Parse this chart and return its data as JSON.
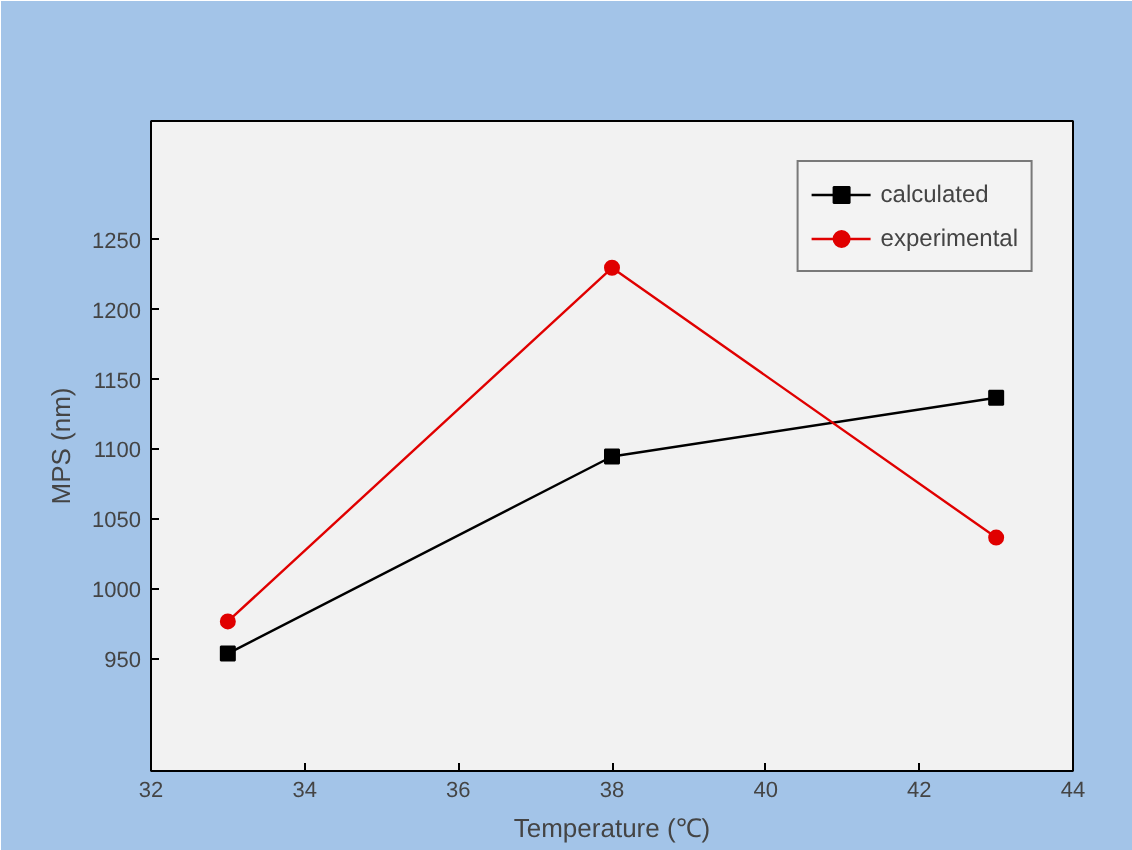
{
  "chart_data": {
    "type": "line",
    "xlabel": "Temperature (℃)",
    "ylabel": "MPS (nm)",
    "x": [
      33,
      38,
      43
    ],
    "series": [
      {
        "name": "calculated",
        "color": "#000000",
        "marker": "square",
        "values": [
          954,
          1095,
          1137
        ]
      },
      {
        "name": "experimental",
        "color": "#e00000",
        "marker": "circle",
        "values": [
          977,
          1230,
          1037
        ]
      }
    ],
    "xlim": [
      32,
      44
    ],
    "xticks": [
      32,
      34,
      36,
      38,
      40,
      42,
      44
    ],
    "ylim": [
      870,
      1335
    ],
    "yticks": [
      950,
      1000,
      1050,
      1100,
      1150,
      1200,
      1250
    ],
    "grid": false,
    "legend": "top right",
    "line_style": "solid"
  }
}
